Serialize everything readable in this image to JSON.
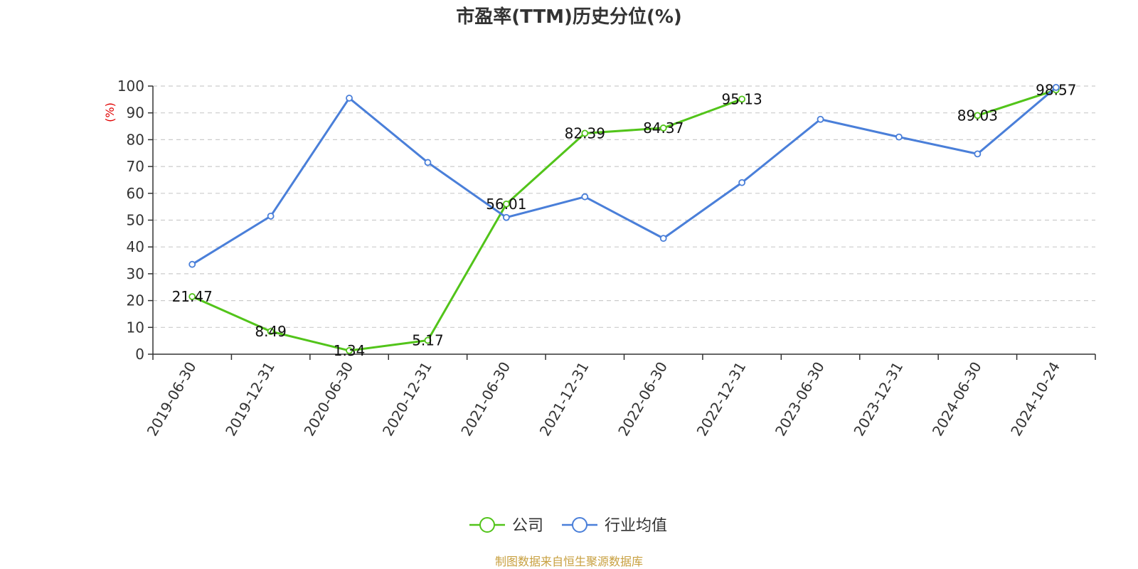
{
  "chart_data": {
    "type": "line",
    "title": "市盈率(TTM)历史分位(%)",
    "ylabel": "(%)",
    "ylim": [
      0,
      100
    ],
    "yticks": [
      0,
      10,
      20,
      30,
      40,
      50,
      60,
      70,
      80,
      90,
      100
    ],
    "grid": true,
    "legend_position": "bottom-center",
    "categories": [
      "2019-06-30",
      "2019-12-31",
      "2020-06-30",
      "2020-12-31",
      "2021-06-30",
      "2021-12-31",
      "2022-06-30",
      "2022-12-31",
      "2023-06-30",
      "2023-12-31",
      "2024-06-30",
      "2024-10-24"
    ],
    "series": [
      {
        "name": "公司",
        "color": "#52c41a",
        "values": [
          21.47,
          8.49,
          1.34,
          5.17,
          56.01,
          82.39,
          84.37,
          95.13,
          null,
          null,
          89.03,
          98.57
        ],
        "labels": [
          "21.47",
          "8.49",
          "1.34",
          "5.17",
          "56.01",
          "82.39",
          "84.37",
          "95.13",
          "",
          "",
          "89.03",
          "98.57"
        ]
      },
      {
        "name": "行业均值",
        "color": "#4a7fd9",
        "values": [
          33.5,
          51.5,
          95.5,
          71.5,
          51.0,
          58.7,
          43.2,
          64.0,
          87.6,
          81.0,
          74.7,
          99.5
        ],
        "labels": []
      }
    ],
    "source": "制图数据来自恒生聚源数据库"
  }
}
